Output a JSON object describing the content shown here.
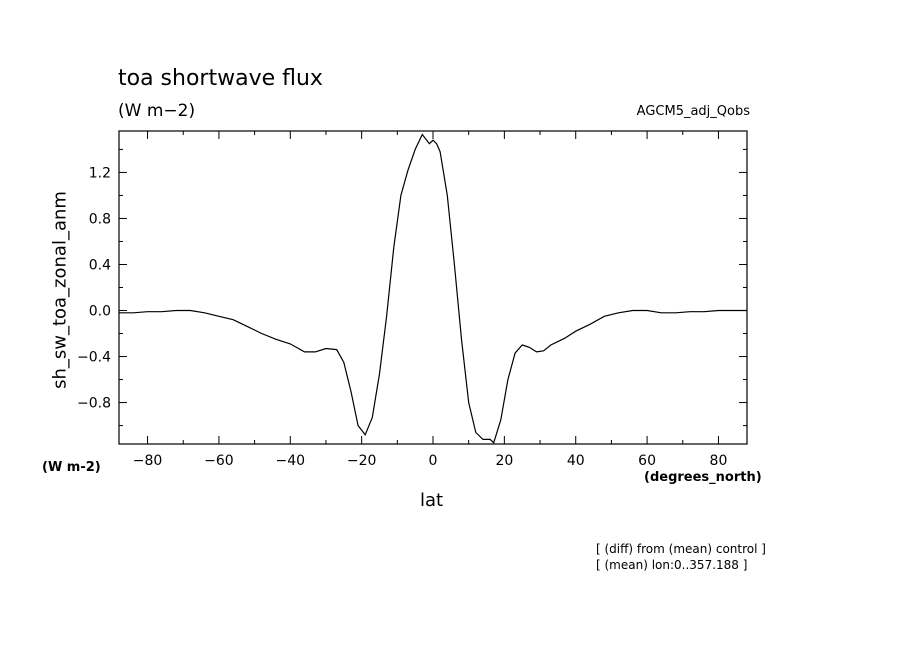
{
  "chart_data": {
    "type": "line",
    "title": "toa shortwave flux",
    "units_label": "(W m−2)",
    "dataset_label": "AGCM5_adj_Qobs",
    "ylabel": "sh_sw_toa_zonal_anm",
    "xlabel": "lat",
    "y_units": "(W m-2)",
    "x_units": "(degrees_north)",
    "xlim": [
      -88,
      88
    ],
    "ylim": [
      -1.16,
      1.56
    ],
    "x_ticks": [
      -80,
      -60,
      -40,
      -20,
      0,
      20,
      40,
      60,
      80
    ],
    "x_tick_labels": [
      "−80",
      "−60",
      "−40",
      "−20",
      "0",
      "20",
      "40",
      "60",
      "80"
    ],
    "y_ticks": [
      -0.8,
      -0.4,
      0.0,
      0.4,
      0.8,
      1.2
    ],
    "y_tick_labels": [
      "−0.8",
      "−0.4",
      "0.0",
      "0.4",
      "0.8",
      "1.2"
    ],
    "grid": false,
    "series": [
      {
        "x": [
          -88,
          -84,
          -80,
          -76,
          -72,
          -68,
          -64,
          -60,
          -56,
          -52,
          -48,
          -44,
          -40,
          -36,
          -33,
          -30,
          -27,
          -25,
          -23,
          -21,
          -19,
          -17,
          -15,
          -13,
          -11,
          -9,
          -7,
          -5,
          -3,
          -1,
          0,
          1,
          2,
          4,
          6,
          8,
          10,
          12,
          14,
          16,
          17,
          19,
          21,
          23,
          25,
          27,
          29,
          31,
          33,
          35,
          37,
          40,
          44,
          48,
          52,
          56,
          60,
          64,
          68,
          72,
          76,
          80,
          84,
          88
        ],
        "y": [
          -0.02,
          -0.02,
          -0.01,
          -0.01,
          0.0,
          0.0,
          -0.02,
          -0.05,
          -0.08,
          -0.14,
          -0.2,
          -0.25,
          -0.29,
          -0.36,
          -0.36,
          -0.33,
          -0.34,
          -0.45,
          -0.7,
          -1.0,
          -1.08,
          -0.93,
          -0.55,
          -0.05,
          0.55,
          1.0,
          1.22,
          1.4,
          1.53,
          1.45,
          1.48,
          1.45,
          1.38,
          1.0,
          0.4,
          -0.25,
          -0.8,
          -1.06,
          -1.12,
          -1.12,
          -1.15,
          -0.95,
          -0.6,
          -0.37,
          -0.3,
          -0.32,
          -0.36,
          -0.35,
          -0.3,
          -0.27,
          -0.24,
          -0.18,
          -0.12,
          -0.05,
          -0.02,
          0.0,
          0.0,
          -0.02,
          -0.02,
          -0.01,
          -0.01,
          0.0,
          0.0,
          0.0
        ]
      }
    ]
  },
  "notes": [
    "[ (diff) from (mean) control ]",
    "[ (mean) lon:0..357.188 ]"
  ]
}
